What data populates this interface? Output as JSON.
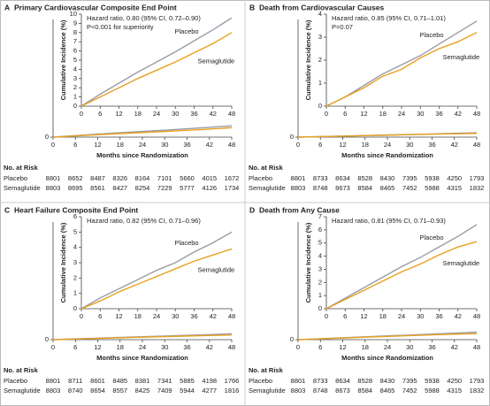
{
  "chart_data": [
    {
      "type": "line",
      "label": "A",
      "title": "Primary Cardiovascular Composite End Point",
      "ylabel": "Cumulative Incidence (%)",
      "xlabel": "Months since Randomization",
      "annotations": [
        "Hazard ratio, 0.80 (95% CI, 0.72–0.90)",
        "P<0.001 for superiority"
      ],
      "x": [
        0,
        6,
        12,
        18,
        24,
        30,
        36,
        42,
        48
      ],
      "xlim": [
        0,
        48
      ],
      "xticks": [
        0,
        6,
        12,
        18,
        24,
        30,
        36,
        42,
        48
      ],
      "ylim": [
        0,
        100
      ],
      "yticks": [
        0
      ],
      "inset_ylim": [
        0,
        10
      ],
      "inset_yticks": [
        0,
        1,
        2,
        3,
        4,
        5,
        6,
        7,
        8,
        9,
        10
      ],
      "at_risk_title": "No. at Risk",
      "series": [
        {
          "name": "Placebo",
          "color": "#9b9ba8",
          "values": [
            0,
            1.3,
            2.5,
            3.7,
            4.8,
            5.9,
            7.1,
            8.3,
            9.6
          ],
          "at_risk": [
            8801,
            8652,
            8487,
            8326,
            8164,
            7101,
            5660,
            4015,
            1672
          ]
        },
        {
          "name": "Semaglutide",
          "color": "#e8a020",
          "values": [
            0,
            1.0,
            2.0,
            3.0,
            3.9,
            4.8,
            5.8,
            6.8,
            8.0
          ],
          "at_risk": [
            8803,
            8695,
            8561,
            8427,
            8254,
            7229,
            5777,
            4126,
            1734
          ]
        }
      ]
    },
    {
      "type": "line",
      "label": "B",
      "title": "Death from Cardiovascular Causes",
      "ylabel": "Cumulative Incidence (%)",
      "xlabel": "Months since Randomization",
      "annotations": [
        "Hazard ratio, 0.85 (95% CI, 0.71–1.01)",
        "P=0.07"
      ],
      "x": [
        0,
        6,
        12,
        18,
        24,
        30,
        36,
        42,
        48
      ],
      "xlim": [
        0,
        48
      ],
      "xticks": [
        0,
        6,
        12,
        18,
        24,
        30,
        36,
        42,
        48
      ],
      "ylim": [
        0,
        100
      ],
      "yticks": [
        0
      ],
      "inset_ylim": [
        0,
        4
      ],
      "inset_yticks": [
        0,
        1,
        2,
        3,
        4
      ],
      "at_risk_title": "No. at Risk",
      "series": [
        {
          "name": "Placebo",
          "color": "#9b9ba8",
          "values": [
            0,
            0.4,
            0.9,
            1.4,
            1.8,
            2.2,
            2.7,
            3.2,
            3.7
          ],
          "at_risk": [
            8801,
            8733,
            8634,
            8528,
            8430,
            7395,
            5938,
            4250,
            1793
          ]
        },
        {
          "name": "Semaglutide",
          "color": "#e8a020",
          "values": [
            0,
            0.4,
            0.8,
            1.3,
            1.6,
            2.1,
            2.5,
            2.8,
            3.2
          ],
          "at_risk": [
            8803,
            8748,
            8673,
            8584,
            8465,
            7452,
            5988,
            4315,
            1832
          ]
        }
      ]
    },
    {
      "type": "line",
      "label": "C",
      "title": "Heart Failure Composite End Point",
      "ylabel": "Cumulative Incidence (%)",
      "xlabel": "Months since Randomization",
      "annotations": [
        "Hazard ratio, 0.82 (95% CI, 0.71–0.96)"
      ],
      "x": [
        0,
        6,
        12,
        18,
        24,
        30,
        36,
        42,
        48
      ],
      "xlim": [
        0,
        48
      ],
      "xticks": [
        0,
        6,
        12,
        18,
        24,
        30,
        36,
        42,
        48
      ],
      "ylim": [
        0,
        100
      ],
      "yticks": [
        0
      ],
      "inset_ylim": [
        0,
        6
      ],
      "inset_yticks": [
        0,
        1,
        2,
        3,
        4,
        5,
        6
      ],
      "at_risk_title": "No. at Risk",
      "series": [
        {
          "name": "Placebo",
          "color": "#9b9ba8",
          "values": [
            0,
            0.7,
            1.3,
            1.9,
            2.5,
            3.0,
            3.7,
            4.3,
            5.0
          ],
          "at_risk": [
            8801,
            8711,
            8601,
            8485,
            8381,
            7341,
            5885,
            4198,
            1766
          ]
        },
        {
          "name": "Semaglutide",
          "color": "#e8a020",
          "values": [
            0,
            0.5,
            1.1,
            1.6,
            2.1,
            2.6,
            3.1,
            3.5,
            3.9
          ],
          "at_risk": [
            8803,
            8740,
            8654,
            8557,
            8425,
            7409,
            5944,
            4277,
            1816
          ]
        }
      ]
    },
    {
      "type": "line",
      "label": "D",
      "title": "Death from Any Cause",
      "ylabel": "Cumulative Incidence (%)",
      "xlabel": "Months since Randomization",
      "annotations": [
        "Hazard ratio, 0.81 (95% CI, 0.71–0.93)"
      ],
      "x": [
        0,
        6,
        12,
        18,
        24,
        30,
        36,
        42,
        48
      ],
      "xlim": [
        0,
        48
      ],
      "xticks": [
        0,
        6,
        12,
        18,
        24,
        30,
        36,
        42,
        48
      ],
      "ylim": [
        0,
        100
      ],
      "yticks": [
        0
      ],
      "inset_ylim": [
        0,
        7
      ],
      "inset_yticks": [
        0,
        1,
        2,
        3,
        4,
        5,
        6,
        7
      ],
      "at_risk_title": "No. at Risk",
      "series": [
        {
          "name": "Placebo",
          "color": "#9b9ba8",
          "values": [
            0,
            0.8,
            1.6,
            2.4,
            3.2,
            3.9,
            4.7,
            5.5,
            6.4
          ],
          "at_risk": [
            8801,
            8733,
            8634,
            8528,
            8430,
            7395,
            5938,
            4250,
            1793
          ]
        },
        {
          "name": "Semaglutide",
          "color": "#e8a020",
          "values": [
            0,
            0.7,
            1.4,
            2.1,
            2.8,
            3.4,
            4.1,
            4.7,
            5.1
          ],
          "at_risk": [
            8803,
            8748,
            8673,
            8584,
            8465,
            7452,
            5988,
            4315,
            1832
          ]
        }
      ]
    }
  ]
}
